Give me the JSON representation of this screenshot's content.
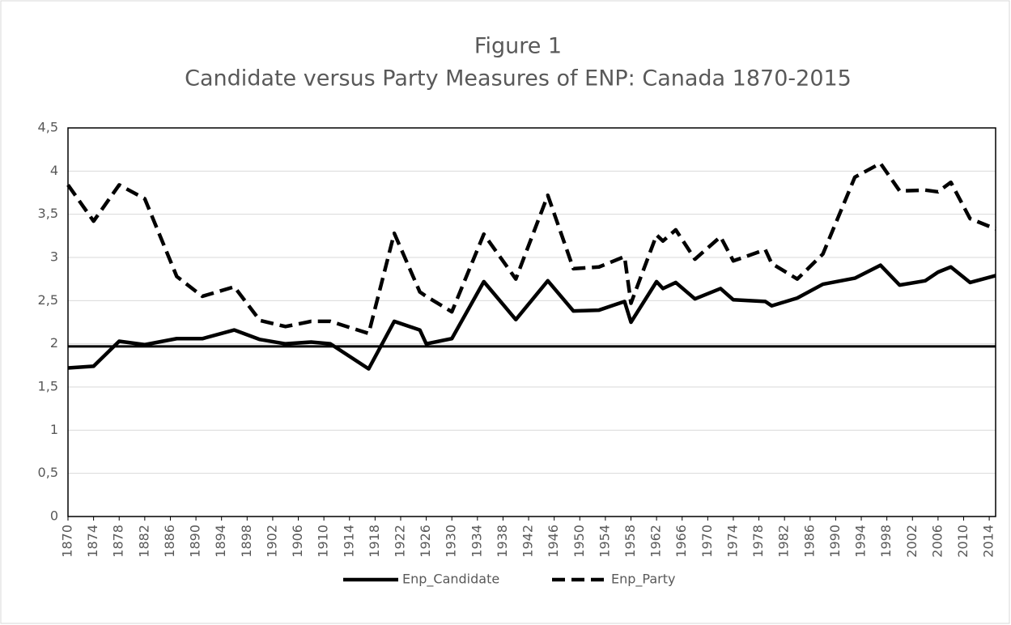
{
  "chart_data": {
    "type": "line",
    "title": "Figure 1",
    "subtitle": "Candidate versus Party Measures of ENP: Canada 1870-2015",
    "x": [
      1870,
      1874,
      1878,
      1882,
      1887,
      1891,
      1896,
      1900,
      1904,
      1908,
      1911,
      1917,
      1921,
      1925,
      1926,
      1930,
      1935,
      1940,
      1945,
      1949,
      1953,
      1957,
      1958,
      1962,
      1963,
      1965,
      1968,
      1972,
      1974,
      1979,
      1980,
      1984,
      1988,
      1993,
      1997,
      2000,
      2004,
      2006,
      2008,
      2011,
      2015
    ],
    "series": [
      {
        "name": "Enp_Candidate",
        "color": "#000000",
        "line_style": "solid",
        "values": [
          1.72,
          1.74,
          2.03,
          1.99,
          2.06,
          2.06,
          2.16,
          2.05,
          2.0,
          2.02,
          2.0,
          1.71,
          2.26,
          2.16,
          2.0,
          2.06,
          2.72,
          2.28,
          2.73,
          2.38,
          2.39,
          2.49,
          2.25,
          2.72,
          2.64,
          2.71,
          2.52,
          2.64,
          2.51,
          2.49,
          2.44,
          2.53,
          2.69,
          2.76,
          2.91,
          2.68,
          2.73,
          2.83,
          2.89,
          2.71,
          2.79
        ]
      },
      {
        "name": "Enp_Party",
        "color": "#000000",
        "line_style": "dashed",
        "values": [
          3.84,
          3.42,
          3.84,
          3.68,
          2.78,
          2.55,
          2.66,
          2.27,
          2.2,
          2.26,
          2.26,
          2.12,
          3.28,
          2.6,
          2.55,
          2.37,
          3.27,
          2.75,
          3.72,
          2.87,
          2.89,
          3.01,
          2.47,
          3.26,
          3.19,
          3.32,
          2.98,
          3.24,
          2.96,
          3.09,
          2.93,
          2.75,
          3.04,
          3.93,
          4.09,
          3.77,
          3.78,
          3.76,
          3.87,
          3.45,
          3.33
        ]
      }
    ],
    "reference_line": 1.97,
    "xlim": [
      1870,
      2015
    ],
    "xticks": [
      1870,
      1874,
      1878,
      1882,
      1886,
      1890,
      1894,
      1898,
      1902,
      1906,
      1910,
      1914,
      1918,
      1922,
      1926,
      1930,
      1934,
      1938,
      1942,
      1946,
      1950,
      1954,
      1958,
      1962,
      1966,
      1970,
      1974,
      1978,
      1982,
      1986,
      1990,
      1994,
      1998,
      2002,
      2006,
      2010,
      2014
    ],
    "ylim": [
      0,
      4.5
    ],
    "yticks": [
      0,
      {
        "value": 0.5,
        "label": "0,5"
      },
      1,
      {
        "value": 1.5,
        "label": "1,5"
      },
      2,
      {
        "value": 2.5,
        "label": "2,5"
      },
      3,
      {
        "value": 3.5,
        "label": "3,5"
      },
      4,
      {
        "value": 4.5,
        "label": "4,5"
      }
    ],
    "grid": true,
    "legend": "bottom"
  }
}
